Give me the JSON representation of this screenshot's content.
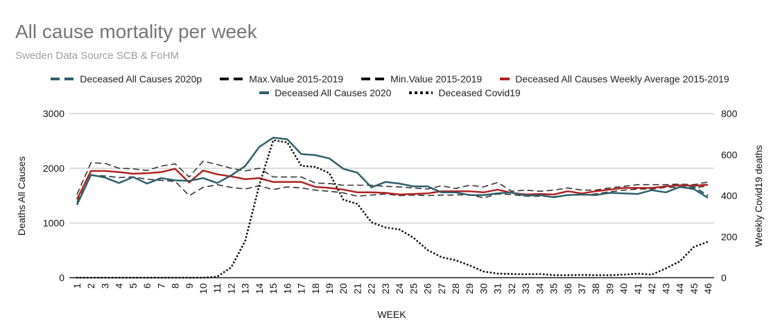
{
  "chart_data": {
    "type": "line",
    "title": "All cause mortality per week",
    "subtitle": "Sweden Data Source SCB & FoHM",
    "xlabel": "WEEK",
    "ylabel": "Deaths All Causes",
    "y2label": "Weekly Covid19 deaths",
    "ylim": [
      0,
      3000
    ],
    "y2lim": [
      0,
      800
    ],
    "yticks": [
      "0",
      "1000",
      "2000",
      "3000"
    ],
    "y2ticks": [
      "0",
      "200",
      "400",
      "600",
      "800"
    ],
    "grid": true,
    "legend_position": "top",
    "x": [
      1,
      2,
      3,
      4,
      5,
      6,
      7,
      8,
      9,
      10,
      11,
      12,
      13,
      14,
      15,
      16,
      17,
      18,
      19,
      20,
      21,
      22,
      23,
      24,
      25,
      26,
      27,
      28,
      29,
      30,
      31,
      32,
      33,
      34,
      35,
      36,
      37,
      38,
      39,
      40,
      41,
      42,
      43,
      44,
      45,
      46
    ],
    "series": [
      {
        "name": "Deceased All Causes 2020p",
        "color": "#2e5f6b",
        "style": "dashed",
        "axis": "left",
        "values": [
          null,
          null,
          null,
          null,
          null,
          null,
          null,
          null,
          null,
          null,
          null,
          null,
          null,
          null,
          null,
          null,
          null,
          null,
          null,
          null,
          null,
          null,
          null,
          null,
          null,
          null,
          null,
          null,
          null,
          null,
          null,
          null,
          null,
          null,
          null,
          null,
          null,
          null,
          null,
          null,
          null,
          null,
          null,
          1660,
          1660,
          1500
        ]
      },
      {
        "name": "Max.Value 2015-2019",
        "color": "#333333",
        "style": "dashed",
        "axis": "left",
        "values": [
          1520,
          2100,
          2090,
          2000,
          1990,
          1960,
          2040,
          2080,
          1840,
          2130,
          2070,
          2000,
          1950,
          2000,
          1840,
          1840,
          1840,
          1730,
          1720,
          1690,
          1690,
          1690,
          1670,
          1660,
          1640,
          1620,
          1680,
          1630,
          1690,
          1660,
          1740,
          1580,
          1600,
          1580,
          1600,
          1640,
          1600,
          1600,
          1640,
          1670,
          1700,
          1700,
          1700,
          1710,
          1700,
          1750
        ]
      },
      {
        "name": "Min.Value 2015-2019",
        "color": "#333333",
        "style": "dashed",
        "axis": "left",
        "values": [
          1380,
          1870,
          1860,
          1830,
          1840,
          1800,
          1780,
          1760,
          1500,
          1650,
          1700,
          1650,
          1620,
          1680,
          1610,
          1660,
          1640,
          1600,
          1580,
          1550,
          1490,
          1510,
          1530,
          1500,
          1510,
          1500,
          1510,
          1510,
          1520,
          1460,
          1530,
          1520,
          1490,
          1490,
          1480,
          1510,
          1510,
          1530,
          1570,
          1600,
          1620,
          1620,
          1650,
          1650,
          1640,
          1680
        ]
      },
      {
        "name": "Deceased All Causes Weekly Average 2015-2019",
        "color": "#b22222",
        "style": "solid",
        "axis": "left",
        "values": [
          1430,
          1950,
          1950,
          1930,
          1900,
          1910,
          1930,
          1990,
          1740,
          1960,
          1890,
          1850,
          1800,
          1820,
          1750,
          1750,
          1750,
          1660,
          1640,
          1610,
          1560,
          1560,
          1550,
          1520,
          1530,
          1540,
          1580,
          1580,
          1580,
          1560,
          1610,
          1550,
          1520,
          1530,
          1520,
          1580,
          1540,
          1580,
          1610,
          1640,
          1640,
          1640,
          1670,
          1690,
          1680,
          1700
        ]
      },
      {
        "name": "Deceased All Causes 2020",
        "color": "#2e5f6b",
        "style": "solid",
        "axis": "left",
        "values": [
          1330,
          1880,
          1830,
          1730,
          1840,
          1720,
          1820,
          1780,
          1770,
          1820,
          1730,
          1870,
          2040,
          2390,
          2560,
          2530,
          2260,
          2240,
          2180,
          1990,
          1920,
          1650,
          1750,
          1720,
          1670,
          1670,
          1560,
          1560,
          1510,
          1510,
          1540,
          1560,
          1500,
          1510,
          1470,
          1510,
          1520,
          1510,
          1550,
          1540,
          1530,
          1600,
          1560,
          1660,
          1620,
          1460
        ]
      },
      {
        "name": "Deceased Covid19",
        "color": "#111111",
        "style": "dotted",
        "axis": "right",
        "values": [
          0,
          0,
          0,
          0,
          0,
          0,
          0,
          0,
          0,
          0,
          5,
          50,
          180,
          450,
          670,
          660,
          545,
          540,
          510,
          380,
          360,
          270,
          245,
          235,
          195,
          135,
          100,
          85,
          60,
          30,
          20,
          18,
          17,
          18,
          12,
          12,
          13,
          12,
          12,
          15,
          20,
          15,
          45,
          80,
          150,
          175
        ]
      }
    ]
  }
}
